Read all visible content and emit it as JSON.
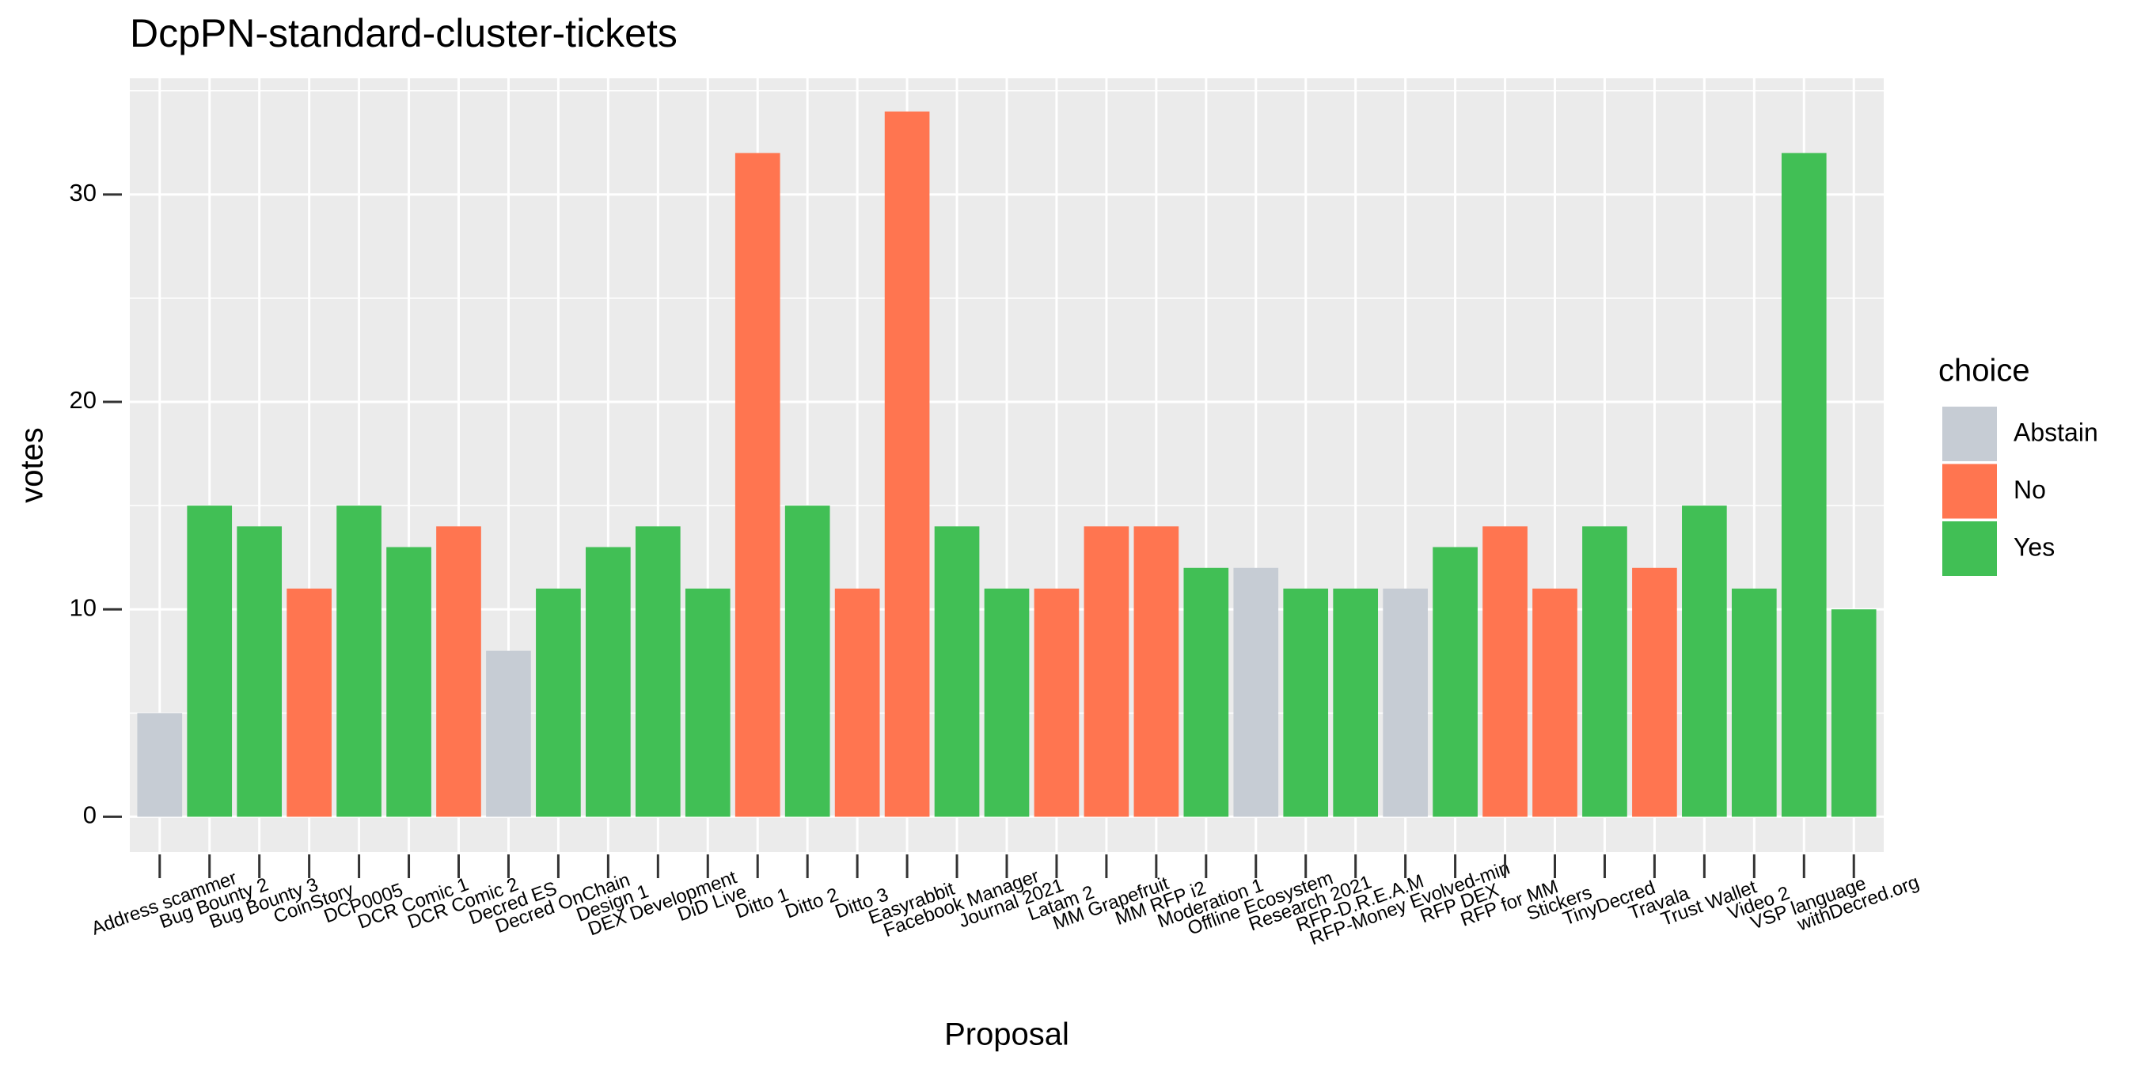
{
  "chart_data": {
    "type": "bar",
    "title": "DcpPN-standard-cluster-tickets",
    "x_label": "Proposal",
    "y_label": "votes",
    "legend_title": "choice",
    "legend_position": "right",
    "grid": true,
    "categories": [
      "Address scammer",
      "Bug Bounty 2",
      "Bug Bounty 3",
      "CoinStory",
      "DCP0005",
      "DCR Comic 1",
      "DCR Comic 2",
      "Decred ES",
      "Decred OnChain",
      "Design 1",
      "DEX Development",
      "DiD Live",
      "Ditto 1",
      "Ditto 2",
      "Ditto 3",
      "Easyrabbit",
      "Facebook Manager",
      "Journal 2021",
      "Latam 2",
      "MM Grapefruit",
      "MM RFP i2",
      "Moderation 1",
      "Offline Ecosystem",
      "Research 2021",
      "RFP-D.R.E.A.M",
      "RFP-Money Evolved-min",
      "RFP DEX",
      "RFP for MM",
      "Stickers",
      "TinyDecred",
      "Travala",
      "Trust Wallet",
      "Video 2",
      "VSP language",
      "withDecred.org"
    ],
    "series": [
      {
        "name": "Abstain",
        "color": "#c6ccd4",
        "values": [
          5,
          null,
          null,
          null,
          null,
          null,
          null,
          8,
          null,
          null,
          null,
          null,
          null,
          null,
          null,
          null,
          null,
          null,
          null,
          null,
          null,
          null,
          12,
          null,
          null,
          11,
          null,
          null,
          null,
          null,
          null,
          null,
          null,
          null,
          null
        ]
      },
      {
        "name": "No",
        "color": "#ff7550",
        "values": [
          null,
          null,
          null,
          11,
          null,
          null,
          14,
          null,
          null,
          null,
          null,
          null,
          32,
          null,
          11,
          34,
          null,
          null,
          11,
          14,
          14,
          null,
          null,
          null,
          null,
          null,
          null,
          14,
          11,
          null,
          12,
          null,
          null,
          null,
          null
        ]
      },
      {
        "name": "Yes",
        "color": "#41bf55",
        "values": [
          null,
          15,
          14,
          null,
          15,
          13,
          null,
          null,
          11,
          13,
          14,
          11,
          null,
          15,
          null,
          null,
          14,
          11,
          null,
          null,
          null,
          12,
          null,
          11,
          11,
          null,
          13,
          null,
          null,
          14,
          null,
          15,
          11,
          32,
          10
        ]
      }
    ],
    "ylim": [
      -1.7,
      35.6
    ],
    "yticks": [
      0,
      10,
      20,
      30
    ]
  }
}
